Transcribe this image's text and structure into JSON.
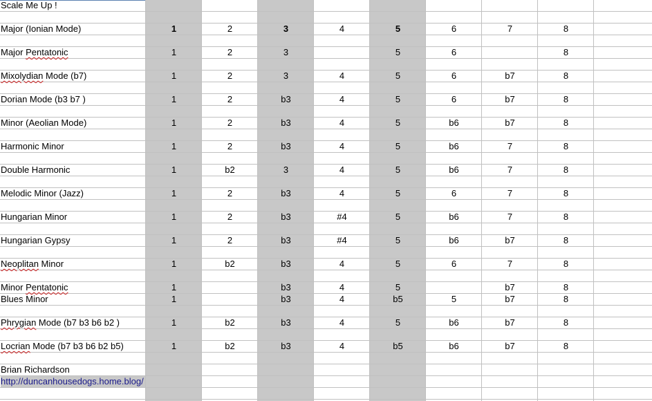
{
  "title": "Scale Me Up !",
  "colors": {
    "shaded_column": "#c8c8c8",
    "gridline": "#c0c0c0",
    "link": "#1a1a8a",
    "spellcheck": "#d02020"
  },
  "shaded_columns": [
    1,
    3,
    5
  ],
  "scales": [
    {
      "name": "Major (Ionian Mode)",
      "row": 2,
      "degrees": [
        "1",
        "2",
        "3",
        "4",
        "5",
        "6",
        "7",
        "8"
      ],
      "bold": [
        0,
        2,
        4
      ]
    },
    {
      "name": "Major Pentatonic",
      "row": 4,
      "degrees": [
        "1",
        "2",
        "3",
        "",
        "5",
        "6",
        "",
        "8"
      ],
      "misspelled": "Pentatonic"
    },
    {
      "name": "Mixolydian Mode (b7)",
      "row": 6,
      "degrees": [
        "1",
        "2",
        "3",
        "4",
        "5",
        "6",
        "b7",
        "8"
      ],
      "misspelled": "Mixolydian"
    },
    {
      "name": "Dorian Mode  (b3 b7 )",
      "row": 8,
      "degrees": [
        "1",
        "2",
        "b3",
        "4",
        "5",
        "6",
        "b7",
        "8"
      ]
    },
    {
      "name": "Minor (Aeolian Mode)",
      "row": 10,
      "degrees": [
        "1",
        "2",
        "b3",
        "4",
        "5",
        "b6",
        "b7",
        "8"
      ]
    },
    {
      "name": "Harmonic Minor",
      "row": 12,
      "degrees": [
        "1",
        "2",
        "b3",
        "4",
        "5",
        "b6",
        "7",
        "8"
      ]
    },
    {
      "name": "Double Harmonic",
      "row": 14,
      "degrees": [
        "1",
        "b2",
        "3",
        "4",
        "5",
        "b6",
        "7",
        "8"
      ]
    },
    {
      "name": "Melodic Minor (Jazz)",
      "row": 16,
      "degrees": [
        "1",
        "2",
        "b3",
        "4",
        "5",
        "6",
        "7",
        "8"
      ]
    },
    {
      "name": "Hungarian Minor",
      "row": 18,
      "degrees": [
        "1",
        "2",
        "b3",
        "#4",
        "5",
        "b6",
        "7",
        "8"
      ]
    },
    {
      "name": "Hungarian Gypsy",
      "row": 20,
      "degrees": [
        "1",
        "2",
        "b3",
        "#4",
        "5",
        "b6",
        "b7",
        "8"
      ]
    },
    {
      "name": "Neoplitan Minor",
      "row": 22,
      "degrees": [
        "1",
        "b2",
        "b3",
        "4",
        "5",
        "6",
        "7",
        "8"
      ],
      "misspelled": "Neoplitan"
    },
    {
      "name": "Minor Pentatonic",
      "row": 24,
      "degrees": [
        "1",
        "",
        "b3",
        "4",
        "5",
        "",
        "b7",
        "8"
      ],
      "misspelled": "Pentatonic"
    },
    {
      "name": "Blues Minor",
      "row": 25,
      "degrees": [
        "1",
        "",
        "b3",
        "4",
        "b5",
        "5",
        "b7",
        "8"
      ]
    },
    {
      "name": "Phrygian Mode (b7 b3 b6 b2  )",
      "row": 27,
      "degrees": [
        "1",
        "b2",
        "b3",
        "4",
        "5",
        "b6",
        "b7",
        "8"
      ],
      "misspelled": "Phrygian"
    },
    {
      "name": "Locrian Mode (b7 b3 b6 b2 b5)",
      "row": 29,
      "degrees": [
        "1",
        "b2",
        "b3",
        "4",
        "b5",
        "b6",
        "b7",
        "8"
      ],
      "misspelled": "Locrian"
    }
  ],
  "author": "Brian Richardson",
  "link": "http://duncanhousedogs.home.blog/"
}
